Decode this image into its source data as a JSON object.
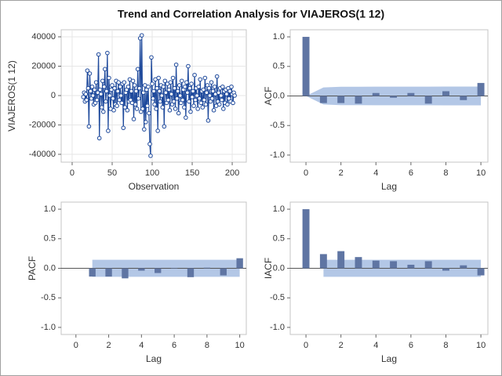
{
  "title": "Trend and Correlation Analysis for VIAJEROS(1 12)",
  "chart_data": [
    {
      "type": "line",
      "x_label": "Observation",
      "y_label": "VIAJEROS(1 12)",
      "color": "#1f4a9c",
      "grid": true,
      "xlim": [
        -13.7,
        217.6
      ],
      "ylim": [
        -45333,
        44800
      ],
      "xticks": [
        0,
        50,
        100,
        150,
        200
      ],
      "yticks": [
        -40000,
        -20000,
        0,
        20000,
        40000
      ],
      "x": [
        14,
        15,
        16,
        17,
        18,
        19,
        20,
        21,
        22,
        23,
        24,
        25,
        26,
        27,
        28,
        29,
        30,
        31,
        32,
        33,
        34,
        35,
        36,
        37,
        38,
        39,
        40,
        41,
        42,
        43,
        44,
        45,
        46,
        47,
        48,
        49,
        50,
        51,
        52,
        53,
        54,
        55,
        56,
        57,
        58,
        59,
        60,
        61,
        62,
        63,
        64,
        65,
        66,
        67,
        68,
        69,
        70,
        71,
        72,
        73,
        74,
        75,
        76,
        77,
        78,
        79,
        80,
        81,
        82,
        83,
        84,
        85,
        86,
        87,
        88,
        89,
        90,
        91,
        92,
        93,
        94,
        95,
        96,
        97,
        98,
        99,
        100,
        101,
        102,
        103,
        104,
        105,
        106,
        107,
        108,
        109,
        110,
        111,
        112,
        113,
        114,
        115,
        116,
        117,
        118,
        119,
        120,
        121,
        122,
        123,
        124,
        125,
        126,
        127,
        128,
        129,
        130,
        131,
        132,
        133,
        134,
        135,
        136,
        137,
        138,
        139,
        140,
        141,
        142,
        143,
        144,
        145,
        146,
        147,
        148,
        149,
        150,
        151,
        152,
        153,
        154,
        155,
        156,
        157,
        158,
        159,
        160,
        161,
        162,
        163,
        164,
        165,
        166,
        167,
        168,
        169,
        170,
        171,
        172,
        173,
        174,
        175,
        176,
        177,
        178,
        179,
        180,
        181,
        182,
        183,
        184,
        185,
        186,
        187,
        188,
        189,
        190,
        191,
        192,
        193,
        194,
        195,
        196,
        197,
        198,
        199,
        200,
        201,
        202,
        203
      ],
      "values": [
        -1000,
        2000,
        -4000,
        1000,
        -3000,
        17000,
        5000,
        -21000,
        15000,
        3000,
        -2000,
        6000,
        0,
        -6000,
        4000,
        -5000,
        9000,
        -3000,
        2000,
        28000,
        -29000,
        4000,
        1000,
        -8000,
        10000,
        -11000,
        6000,
        18000,
        -4000,
        3000,
        29000,
        -24000,
        12000,
        0,
        -9000,
        4000,
        7000,
        -2000,
        -10000,
        5000,
        -6000,
        10000,
        -7000,
        3000,
        9000,
        -3000,
        6000,
        0,
        -5000,
        8000,
        -22000,
        9000,
        -8000,
        2000,
        4000,
        -10000,
        6000,
        -4000,
        11000,
        -3000,
        3000,
        -5000,
        10000,
        -16000,
        7000,
        -6000,
        3000,
        -9000,
        18000,
        -2000,
        5000,
        39000,
        -11000,
        41000,
        -9000,
        2000,
        -23000,
        7000,
        -18000,
        4000,
        -7000,
        6000,
        -12000,
        -33000,
        -41000,
        26000,
        8000,
        -2000,
        3000,
        -6000,
        11000,
        -9000,
        5000,
        -24000,
        12000,
        3000,
        -4000,
        7000,
        0,
        -8000,
        6000,
        -21000,
        10000,
        2000,
        -5000,
        8000,
        -3000,
        4000,
        -10000,
        9000,
        1000,
        -6000,
        12000,
        -4000,
        5000,
        -9000,
        21000,
        -2000,
        3000,
        -12000,
        7000,
        0,
        -5000,
        10000,
        -3000,
        4000,
        -8000,
        6000,
        -15000,
        9000,
        2000,
        20000,
        -4000,
        5000,
        -11000,
        8000,
        -1000,
        3000,
        -7000,
        14000,
        -3000,
        5000,
        0,
        -9000,
        6000,
        -2000,
        11000,
        -5000,
        3000,
        -8000,
        4000,
        -3000,
        12000,
        -6000,
        2000,
        7000,
        -17000,
        5000,
        0,
        -4000,
        9000,
        -2000,
        3000,
        -10000,
        6000,
        1000,
        -7000,
        13000,
        -4000,
        2000,
        -6000,
        5000,
        0,
        -3000,
        6000,
        -9000,
        3000,
        -5000,
        4000,
        1000,
        -6000,
        5000,
        -2000,
        3000,
        -4000,
        6000,
        1000,
        -5000,
        2000,
        0
      ]
    },
    {
      "type": "bar",
      "x_label": "Lag",
      "y_label": "ACF",
      "color": "#5f75a3",
      "band_color": "#b3c7e6",
      "grid": false,
      "xlim": [
        -0.9,
        10.4
      ],
      "ylim": [
        -1.12,
        1.12
      ],
      "xticks": [
        0,
        2,
        4,
        6,
        8,
        10
      ],
      "yticks": [
        {
          "value": -1,
          "label": "-1.0"
        },
        {
          "value": -0.5,
          "label": "-0.5"
        },
        {
          "value": 0,
          "label": "0.0"
        },
        {
          "value": 0.5,
          "label": "0.5"
        },
        {
          "value": 1,
          "label": "1.0"
        }
      ],
      "lags": [
        0,
        1,
        2,
        3,
        4,
        5,
        6,
        7,
        8,
        9,
        10
      ],
      "values": [
        1.0,
        -0.12,
        -0.12,
        -0.13,
        0.05,
        -0.03,
        0.05,
        -0.13,
        0.08,
        -0.07,
        0.22
      ],
      "limit_lags": [
        0,
        1,
        2,
        3,
        4,
        5,
        6,
        7,
        8,
        9,
        10
      ],
      "upper_limit": [
        0,
        0.145,
        0.156,
        0.157,
        0.158,
        0.158,
        0.158,
        0.158,
        0.159,
        0.159,
        0.159
      ],
      "lower_limit": [
        0,
        -0.145,
        -0.156,
        -0.157,
        -0.158,
        -0.158,
        -0.158,
        -0.158,
        -0.159,
        -0.159,
        -0.159
      ]
    },
    {
      "type": "bar",
      "x_label": "Lag",
      "y_label": "PACF",
      "color": "#5f75a3",
      "band_color": "#b3c7e6",
      "grid": false,
      "xlim": [
        -0.9,
        10.4
      ],
      "ylim": [
        -1.12,
        1.12
      ],
      "xticks": [
        0,
        2,
        4,
        6,
        8,
        10
      ],
      "yticks": [
        {
          "value": -1,
          "label": "-1.0"
        },
        {
          "value": -0.5,
          "label": "-0.5"
        },
        {
          "value": 0,
          "label": "0.0"
        },
        {
          "value": 0.5,
          "label": "0.5"
        },
        {
          "value": 1,
          "label": "1.0"
        }
      ],
      "lags": [
        1,
        2,
        3,
        4,
        5,
        6,
        7,
        8,
        9,
        10
      ],
      "values": [
        -0.14,
        -0.14,
        -0.17,
        -0.04,
        -0.08,
        0,
        -0.15,
        0.01,
        -0.12,
        0.17
      ],
      "limit_lags": [
        1,
        2,
        3,
        4,
        5,
        6,
        7,
        8,
        9,
        10
      ],
      "upper_limit": [
        0.145,
        0.145,
        0.145,
        0.145,
        0.145,
        0.145,
        0.145,
        0.145,
        0.145,
        0.145
      ],
      "lower_limit": [
        -0.145,
        -0.145,
        -0.145,
        -0.145,
        -0.145,
        -0.145,
        -0.145,
        -0.145,
        -0.145,
        -0.145
      ]
    },
    {
      "type": "bar",
      "x_label": "Lag",
      "y_label": "IACF",
      "color": "#5f75a3",
      "band_color": "#b3c7e6",
      "grid": false,
      "xlim": [
        -0.9,
        10.4
      ],
      "ylim": [
        -1.12,
        1.12
      ],
      "xticks": [
        0,
        2,
        4,
        6,
        8,
        10
      ],
      "yticks": [
        {
          "value": -1,
          "label": "-1.0"
        },
        {
          "value": -0.5,
          "label": "-0.5"
        },
        {
          "value": 0,
          "label": "0.0"
        },
        {
          "value": 0.5,
          "label": "0.5"
        },
        {
          "value": 1,
          "label": "1.0"
        }
      ],
      "lags": [
        0,
        1,
        2,
        3,
        4,
        5,
        6,
        7,
        8,
        9,
        10
      ],
      "values": [
        1.0,
        0.24,
        0.29,
        0.19,
        0.13,
        0.12,
        0.06,
        0.12,
        -0.04,
        0.05,
        -0.12
      ],
      "limit_lags": [
        1,
        2,
        3,
        4,
        5,
        6,
        7,
        8,
        9,
        10
      ],
      "upper_limit": [
        0.145,
        0.145,
        0.145,
        0.145,
        0.145,
        0.145,
        0.145,
        0.145,
        0.145,
        0.145
      ],
      "lower_limit": [
        -0.145,
        -0.145,
        -0.145,
        -0.145,
        -0.145,
        -0.145,
        -0.145,
        -0.145,
        -0.145,
        -0.145
      ]
    }
  ]
}
